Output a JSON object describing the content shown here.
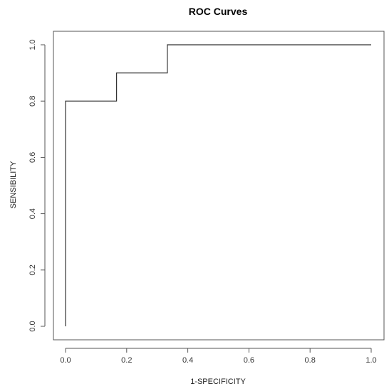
{
  "chart_data": {
    "type": "line",
    "title": "ROC Curves",
    "xlabel": "1-SPECIFICITY",
    "ylabel": "SENSIBILITY",
    "xlim": [
      0.0,
      1.0
    ],
    "ylim": [
      0.0,
      1.0
    ],
    "x_ticks": [
      "0.0",
      "0.2",
      "0.4",
      "0.6",
      "0.8",
      "1.0"
    ],
    "y_ticks": [
      "0.0",
      "0.2",
      "0.4",
      "0.6",
      "0.8",
      "1.0"
    ],
    "grid": false,
    "series": [
      {
        "style": "step",
        "color": "#333333",
        "points": [
          {
            "x": 0.0,
            "y": 0.0
          },
          {
            "x": 0.0,
            "y": 0.8
          },
          {
            "x": 0.167,
            "y": 0.8
          },
          {
            "x": 0.167,
            "y": 0.9
          },
          {
            "x": 0.333,
            "y": 0.9
          },
          {
            "x": 0.333,
            "y": 1.0
          },
          {
            "x": 1.0,
            "y": 1.0
          }
        ]
      }
    ]
  }
}
